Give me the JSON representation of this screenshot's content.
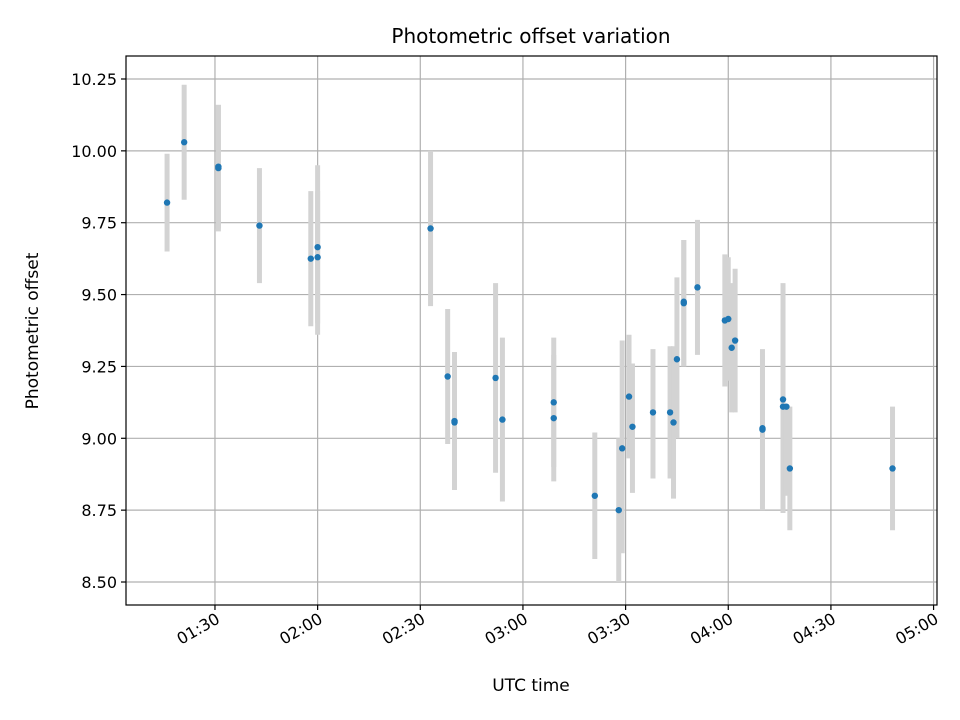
{
  "chart_data": {
    "type": "scatter",
    "title": "Photometric offset variation",
    "xlabel": "UTC time",
    "ylabel": "Photometric offset",
    "xlim": [
      "01:04",
      "05:01"
    ],
    "ylim": [
      8.42,
      10.33
    ],
    "grid": true,
    "x_ticks": [
      "01:30",
      "02:00",
      "02:30",
      "03:00",
      "03:30",
      "04:00",
      "04:30",
      "05:00"
    ],
    "y_ticks": [
      8.5,
      8.75,
      9.0,
      9.25,
      9.5,
      9.75,
      10.0,
      10.25
    ],
    "y_tick_labels": [
      "8.50",
      "8.75",
      "9.00",
      "9.25",
      "9.50",
      "9.75",
      "10.00",
      "10.25"
    ],
    "colors": {
      "points": "#1f77b4",
      "errorbars": "#d3d3d3",
      "grid": "#b0b0b0"
    },
    "points": [
      {
        "t": "01:16",
        "y": 9.82,
        "lo": 9.65,
        "hi": 9.99
      },
      {
        "t": "01:21",
        "y": 10.03,
        "lo": 9.83,
        "hi": 10.23
      },
      {
        "t": "01:31",
        "y": 9.945,
        "lo": 9.73,
        "hi": 10.16
      },
      {
        "t": "01:31",
        "y": 9.94,
        "lo": 9.72,
        "hi": 10.16
      },
      {
        "t": "01:43",
        "y": 9.74,
        "lo": 9.54,
        "hi": 9.94
      },
      {
        "t": "01:58",
        "y": 9.625,
        "lo": 9.39,
        "hi": 9.86
      },
      {
        "t": "02:00",
        "y": 9.63,
        "lo": 9.4,
        "hi": 9.86
      },
      {
        "t": "02:00",
        "y": 9.665,
        "lo": 9.36,
        "hi": 9.95
      },
      {
        "t": "02:33",
        "y": 9.73,
        "lo": 9.46,
        "hi": 10.0
      },
      {
        "t": "02:38",
        "y": 9.215,
        "lo": 8.98,
        "hi": 9.45
      },
      {
        "t": "02:40",
        "y": 9.06,
        "lo": 8.82,
        "hi": 9.3
      },
      {
        "t": "02:40",
        "y": 9.055,
        "lo": 8.83,
        "hi": 9.28
      },
      {
        "t": "02:52",
        "y": 9.21,
        "lo": 8.88,
        "hi": 9.54
      },
      {
        "t": "02:54",
        "y": 9.065,
        "lo": 8.78,
        "hi": 9.35
      },
      {
        "t": "03:09",
        "y": 9.125,
        "lo": 8.9,
        "hi": 9.35
      },
      {
        "t": "03:09",
        "y": 9.07,
        "lo": 8.85,
        "hi": 9.29
      },
      {
        "t": "03:21",
        "y": 8.8,
        "lo": 8.58,
        "hi": 9.02
      },
      {
        "t": "03:28",
        "y": 8.75,
        "lo": 8.5,
        "hi": 9.0
      },
      {
        "t": "03:29",
        "y": 8.965,
        "lo": 8.6,
        "hi": 9.34
      },
      {
        "t": "03:31",
        "y": 9.145,
        "lo": 8.93,
        "hi": 9.36
      },
      {
        "t": "03:32",
        "y": 9.04,
        "lo": 8.81,
        "hi": 9.26
      },
      {
        "t": "03:38",
        "y": 9.09,
        "lo": 8.86,
        "hi": 9.31
      },
      {
        "t": "03:43",
        "y": 9.09,
        "lo": 8.86,
        "hi": 9.32
      },
      {
        "t": "03:44",
        "y": 9.055,
        "lo": 8.79,
        "hi": 9.32
      },
      {
        "t": "03:45",
        "y": 9.275,
        "lo": 9.0,
        "hi": 9.56
      },
      {
        "t": "03:47",
        "y": 9.475,
        "lo": 9.25,
        "hi": 9.69
      },
      {
        "t": "03:47",
        "y": 9.47,
        "lo": 9.25,
        "hi": 9.69
      },
      {
        "t": "03:51",
        "y": 9.525,
        "lo": 9.29,
        "hi": 9.76
      },
      {
        "t": "03:59",
        "y": 9.41,
        "lo": 9.18,
        "hi": 9.64
      },
      {
        "t": "04:00",
        "y": 9.415,
        "lo": 9.2,
        "hi": 9.63
      },
      {
        "t": "04:01",
        "y": 9.315,
        "lo": 9.09,
        "hi": 9.54
      },
      {
        "t": "04:02",
        "y": 9.34,
        "lo": 9.09,
        "hi": 9.59
      },
      {
        "t": "04:10",
        "y": 9.03,
        "lo": 8.75,
        "hi": 9.31
      },
      {
        "t": "04:10",
        "y": 9.035,
        "lo": 8.78,
        "hi": 9.29
      },
      {
        "t": "04:16",
        "y": 9.135,
        "lo": 8.74,
        "hi": 9.54
      },
      {
        "t": "04:16",
        "y": 9.11,
        "lo": 8.76,
        "hi": 9.45
      },
      {
        "t": "04:17",
        "y": 9.11,
        "lo": 8.8,
        "hi": 9.11
      },
      {
        "t": "04:18",
        "y": 8.895,
        "lo": 8.68,
        "hi": 9.11
      },
      {
        "t": "04:48",
        "y": 8.895,
        "lo": 8.68,
        "hi": 9.11
      }
    ]
  }
}
